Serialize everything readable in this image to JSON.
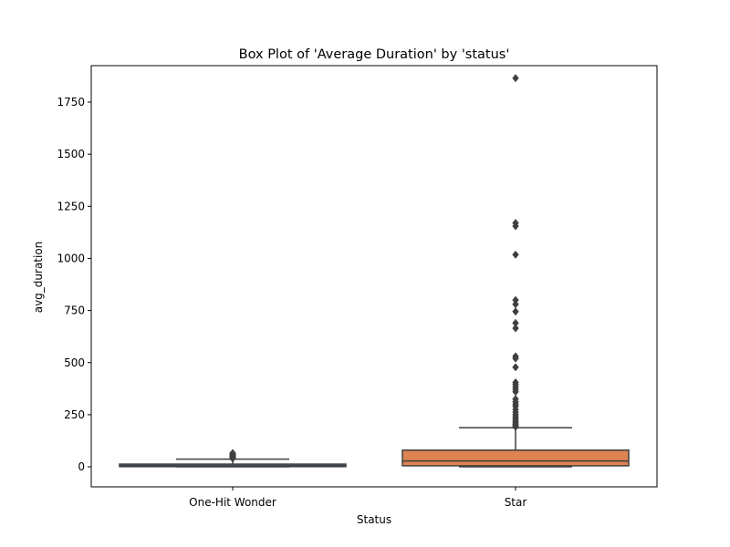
{
  "chart_data": {
    "type": "box",
    "title": "Box Plot of 'Average Duration' by 'status'",
    "xlabel": "Status",
    "ylabel": "avg_duration",
    "ylim": [
      -96,
      1925
    ],
    "yticks": [
      0,
      250,
      500,
      750,
      1000,
      1250,
      1500,
      1750
    ],
    "categories": [
      "One-Hit Wonder",
      "Star"
    ],
    "colors": {
      "One-Hit Wonder": "#4c72b0",
      "Star": "#dd8452",
      "line": "#3f3f3f"
    },
    "boxes": [
      {
        "category": "One-Hit Wonder",
        "whislo": 0,
        "q1": 1,
        "median": 5,
        "q3": 13,
        "whishi": 37,
        "fliers": [
          40,
          43,
          46,
          49,
          52,
          55,
          58,
          62,
          66
        ]
      },
      {
        "category": "Star",
        "whislo": 0,
        "q1": 5,
        "median": 28,
        "q3": 80,
        "whishi": 188,
        "fliers": [
          192,
          198,
          205,
          212,
          220,
          230,
          240,
          250,
          262,
          275,
          290,
          300,
          312,
          325,
          360,
          372,
          383,
          395,
          405,
          478,
          520,
          530,
          665,
          690,
          745,
          780,
          800,
          1018,
          1155,
          1170,
          1865
        ]
      }
    ]
  }
}
